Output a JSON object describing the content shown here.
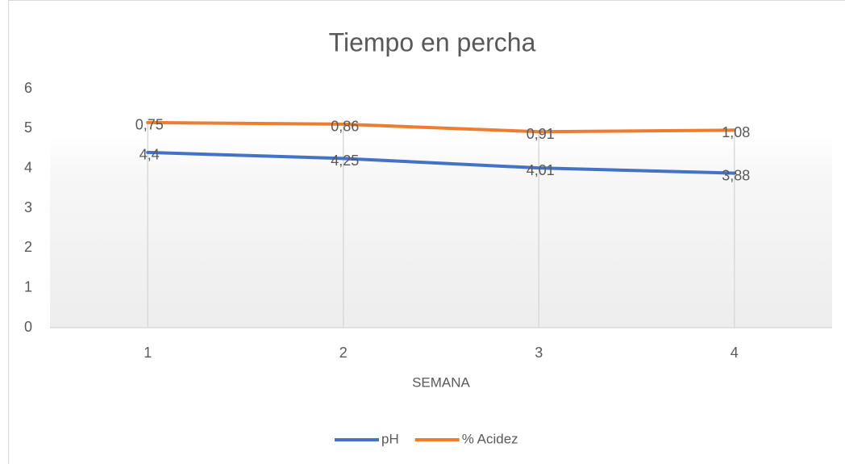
{
  "chart_data": {
    "type": "line",
    "stacked": true,
    "title": "Tiempo en percha",
    "x_label": "SEMANA",
    "categories": [
      "1",
      "2",
      "3",
      "4"
    ],
    "series": [
      {
        "name": "pH",
        "color": "#4472c4",
        "values": [
          4.4,
          4.25,
          4.01,
          3.88
        ],
        "value_labels": [
          "4,4",
          "4,25",
          "4,01",
          "3,88"
        ]
      },
      {
        "name": "% Acidez",
        "color": "#ed7d31",
        "values": [
          0.75,
          0.86,
          0.91,
          1.08
        ],
        "value_labels": [
          "0,75",
          "0,86",
          "0,91",
          "1,08"
        ]
      }
    ],
    "ylim": [
      0,
      6
    ],
    "yticks": [
      0,
      1,
      2,
      3,
      4,
      5,
      6
    ],
    "grid": false,
    "drop_lines": true,
    "legend": "bottom"
  }
}
